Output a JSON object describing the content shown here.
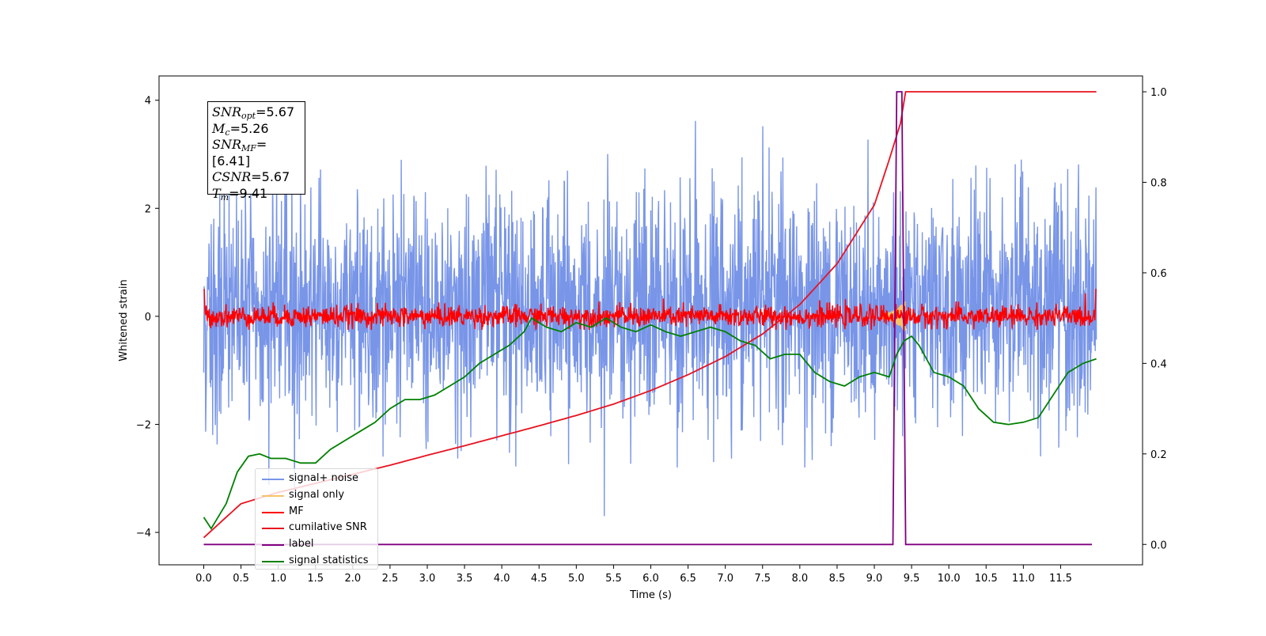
{
  "chart_data": {
    "type": "line",
    "xlabel": "Time (s)",
    "ylabel": "Whitened strain",
    "xlim": [
      -0.6,
      12.6
    ],
    "ylim": [
      -4.6,
      4.45
    ],
    "y2lim": [
      -0.045,
      1.035
    ],
    "x_ticks": [
      "0.0",
      "0.5",
      "1.0",
      "1.5",
      "2.0",
      "2.5",
      "3.0",
      "3.5",
      "4.0",
      "4.5",
      "5.0",
      "5.5",
      "6.0",
      "6.5",
      "7.0",
      "7.5",
      "8.0",
      "8.5",
      "9.0",
      "9.5",
      "10.0",
      "10.5",
      "11.0",
      "11.5"
    ],
    "y_ticks": [
      "−4",
      "−2",
      "0",
      "2",
      "4"
    ],
    "y2_ticks": [
      "0.0",
      "0.2",
      "0.4",
      "0.6",
      "0.8",
      "1.0"
    ],
    "grid": false,
    "legend_position": "lower-left",
    "colors": {
      "signal_noise": "#7895e8",
      "signal_only": "#f5c46a",
      "mf": "#ff0000",
      "cumulative_snr": "#e8121f",
      "label": "#800080",
      "statistics": "#008000"
    },
    "series": [
      {
        "name": "signal+ noise",
        "axis": "left",
        "description_range": [
          -3.7,
          4.0
        ],
        "t_range": [
          0.0,
          11.98
        ]
      },
      {
        "name": "signal only",
        "axis": "left",
        "t_range": [
          9.1,
          9.42
        ],
        "values_range": [
          -0.3,
          0.3
        ]
      },
      {
        "name": "MF",
        "axis": "left",
        "t_range": [
          0.0,
          11.98
        ],
        "values_range": [
          -0.25,
          0.5
        ]
      },
      {
        "name": "cumilative SNR",
        "axis": "right",
        "x": [
          0.0,
          0.5,
          1.0,
          1.5,
          2.0,
          2.5,
          3.0,
          3.5,
          4.0,
          4.5,
          5.0,
          5.5,
          6.0,
          6.5,
          7.0,
          7.5,
          8.0,
          8.5,
          9.0,
          9.2,
          9.35,
          9.42,
          11.98
        ],
        "values": [
          0.015,
          0.09,
          0.115,
          0.135,
          0.155,
          0.175,
          0.197,
          0.218,
          0.24,
          0.262,
          0.285,
          0.31,
          0.34,
          0.375,
          0.415,
          0.465,
          0.53,
          0.62,
          0.75,
          0.85,
          0.93,
          1.0,
          1.0
        ]
      },
      {
        "name": "label",
        "axis": "right",
        "x": [
          0.0,
          9.25,
          9.3,
          9.37,
          9.42,
          11.92
        ],
        "values": [
          0.0,
          0.0,
          1.0,
          1.0,
          0.0,
          0.0
        ]
      },
      {
        "name": "signal statistics",
        "axis": "right",
        "x": [
          0.0,
          0.1,
          0.3,
          0.45,
          0.6,
          0.75,
          0.9,
          1.1,
          1.3,
          1.5,
          1.7,
          1.9,
          2.1,
          2.3,
          2.5,
          2.7,
          2.9,
          3.1,
          3.3,
          3.5,
          3.7,
          3.9,
          4.1,
          4.3,
          4.4,
          4.6,
          4.8,
          5.0,
          5.2,
          5.4,
          5.6,
          5.8,
          6.0,
          6.2,
          6.4,
          6.6,
          6.8,
          7.0,
          7.2,
          7.4,
          7.6,
          7.8,
          8.0,
          8.2,
          8.4,
          8.6,
          8.8,
          9.0,
          9.2,
          9.3,
          9.4,
          9.5,
          9.6,
          9.8,
          10.0,
          10.2,
          10.4,
          10.6,
          10.8,
          11.0,
          11.2,
          11.4,
          11.6,
          11.8,
          11.98
        ],
        "values": [
          0.06,
          0.035,
          0.09,
          0.16,
          0.195,
          0.2,
          0.19,
          0.19,
          0.18,
          0.18,
          0.21,
          0.23,
          0.25,
          0.27,
          0.3,
          0.32,
          0.32,
          0.33,
          0.35,
          0.37,
          0.4,
          0.42,
          0.44,
          0.47,
          0.5,
          0.48,
          0.47,
          0.49,
          0.48,
          0.5,
          0.48,
          0.47,
          0.485,
          0.47,
          0.46,
          0.47,
          0.48,
          0.47,
          0.45,
          0.44,
          0.41,
          0.42,
          0.42,
          0.38,
          0.36,
          0.35,
          0.37,
          0.38,
          0.37,
          0.42,
          0.45,
          0.46,
          0.44,
          0.38,
          0.37,
          0.35,
          0.3,
          0.27,
          0.265,
          0.27,
          0.28,
          0.33,
          0.38,
          0.4,
          0.41
        ]
      }
    ],
    "annotation": [
      {
        "base": "SNR",
        "sub": "opt",
        "value": "=5.67"
      },
      {
        "base": "M",
        "sub": "c",
        "value": "=5.26"
      },
      {
        "base": "SNR",
        "sub": "MF",
        "value": "=[6.41]"
      },
      {
        "base": "CSNR",
        "sub": "",
        "value": "=5.67"
      },
      {
        "base": "T",
        "sub": "m",
        "value": "=9.41"
      }
    ]
  }
}
